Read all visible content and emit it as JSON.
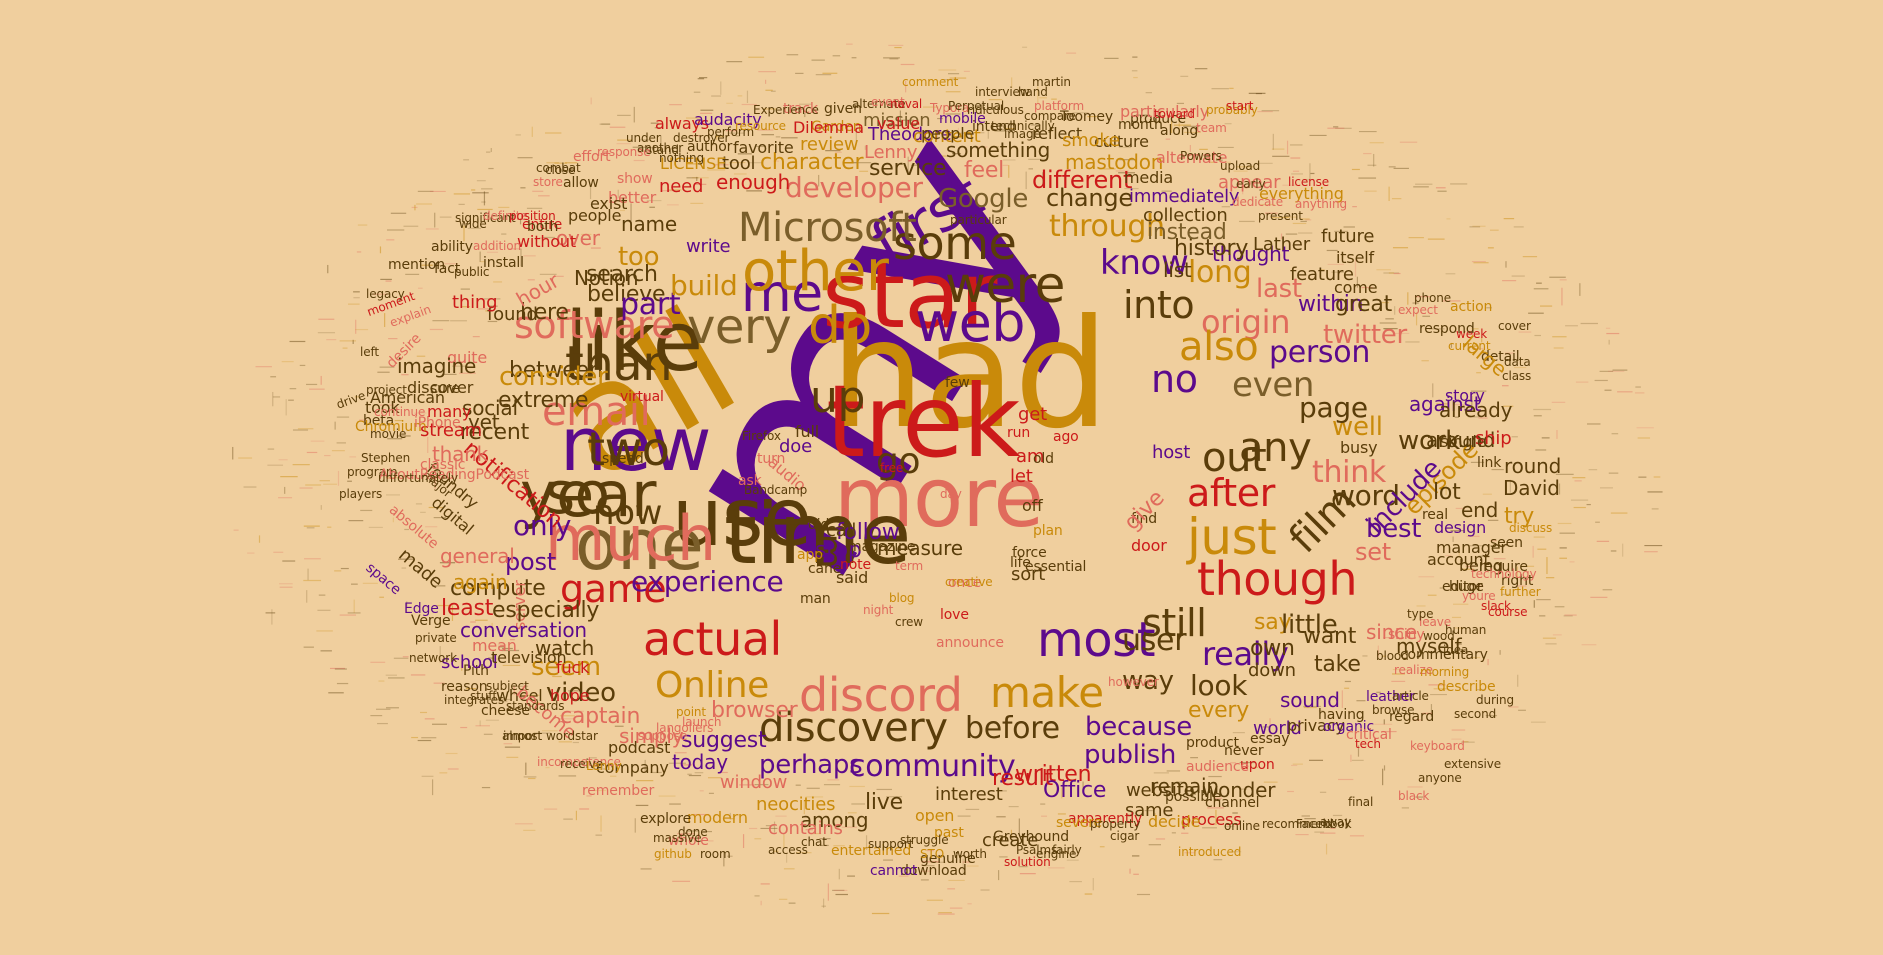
{
  "palette": {
    "background": "#f0cf9e",
    "purple": "#5c0a8c",
    "gold": "#c98a0a",
    "red": "#cc1a1a",
    "salmon": "#e06b5c",
    "brown": "#5a3d0a",
    "olive": "#7a5e2a"
  },
  "words": [
    "my",
    "had",
    "star",
    "trek",
    "all",
    "more",
    "time",
    "use",
    "one",
    "like",
    "new",
    "much",
    "so",
    "year",
    "first",
    "web",
    "were",
    "some",
    "me",
    "do",
    "very",
    "other",
    "Microsoft",
    "software",
    "email",
    "than",
    "two",
    "up",
    "lm",
    "go",
    "now",
    "game",
    "actual",
    "discord",
    "Online",
    "most",
    "discovery",
    "make",
    "still",
    "really",
    "just",
    "out",
    "after",
    "though",
    "film",
    "any",
    "even",
    "person",
    "origin",
    "also",
    "into",
    "no",
    "know",
    "through",
    "Google",
    "change",
    "developer",
    "only",
    "post",
    "compute",
    "community",
    "perhaps",
    "publish",
    "because",
    "before",
    "user",
    "way",
    "look",
    "every",
    "say",
    "little",
    "set",
    "best",
    "word",
    "think",
    "well",
    "page",
    "episode",
    "twitter",
    "last",
    "long",
    "different",
    "feel",
    "service",
    "something",
    "character",
    "review",
    "mission",
    "Theodore",
    "Lenny",
    "content",
    "author",
    "favorite",
    "tool",
    "enough",
    "need",
    "LICENSE",
    "better",
    "show",
    "mastodon",
    "alternate",
    "culture",
    "media",
    "immediately",
    "collection",
    "thought",
    "list",
    "history",
    "instead",
    "feature",
    "Lather",
    "future",
    "appear",
    "everything",
    "itself",
    "within",
    "great",
    "come",
    "against",
    "work",
    "busy",
    "include",
    "myself",
    "since",
    "want",
    "take",
    "down",
    "sound",
    "world",
    "privacy",
    "having",
    "organic",
    "essay",
    "product",
    "never",
    "upon",
    "audience",
    "remain",
    "wonder",
    "possible",
    "website",
    "same",
    "process",
    "channel",
    "decide",
    "apparently",
    "severe",
    "written",
    "Office",
    "result",
    "interest",
    "live",
    "open",
    "past",
    "Greyhound",
    "Psalms",
    "create",
    "genuine",
    "download",
    "cannot",
    "entertained",
    "among",
    "contains",
    "modern",
    "neocities",
    "window",
    "whole",
    "github",
    "explore",
    "remember",
    "company",
    "podcast",
    "today",
    "simply",
    "suggest",
    "captain",
    "browser",
    "video",
    "seem",
    "experience",
    "own",
    "fuck",
    "reason",
    "Pith",
    "school",
    "mean",
    "private",
    "Verge",
    "network",
    "hope",
    "wheel",
    "cheese",
    "import",
    "become",
    "watch",
    "server",
    "conversation",
    "especially",
    "least",
    "again",
    "general",
    "made",
    "space",
    "Edge",
    "digital",
    "absolute",
    "notification",
    "foundry",
    "thank",
    "recent",
    "social",
    "yet",
    "stream",
    "many",
    "discover",
    "between",
    "consider",
    "extreme",
    "here",
    "found",
    "sure",
    "quite",
    "thing",
    "hour",
    "Notion",
    "believe",
    "search",
    "part",
    "build",
    "too",
    "name",
    "write",
    "over",
    "without",
    "entire",
    "both",
    "people",
    "exist",
    "allow",
    "store",
    "close",
    "effort",
    "combat",
    "stop",
    "follow",
    "measure",
    "magazine",
    "did",
    "call",
    "doe",
    "audio",
    "turn",
    "ask",
    "full",
    "said",
    "note",
    "app",
    "free",
    "cane",
    "man",
    "night",
    "day",
    "blog",
    "term",
    "once",
    "sort",
    "life",
    "door",
    "find",
    "give",
    "host",
    "run",
    "ago",
    "am",
    "get",
    "let",
    "off",
    "plan",
    "force",
    "essential",
    "love",
    "announce",
    "creative",
    "crew",
    "few",
    "old",
    "lot",
    "David",
    "try",
    "end",
    "round",
    "around",
    "already",
    "ship",
    "story",
    "single",
    "real",
    "link",
    "design",
    "manager",
    "account",
    "being",
    "seen",
    "editor",
    "require",
    "huge",
    "right",
    "slack",
    "youre",
    "course",
    "discuss",
    "further",
    "technology",
    "shiny",
    "realize",
    "commentary",
    "blood",
    "leather",
    "critical",
    "regard",
    "tech",
    "browse",
    "describe",
    "article",
    "morning",
    "wood",
    "leave",
    "type",
    "idea",
    "human",
    "phone",
    "expect",
    "current",
    "week",
    "cover",
    "data",
    "class",
    "detail",
    "action",
    "respond",
    "large",
    "imagine",
    "American",
    "took",
    "beta",
    "Chromium",
    "iPhone",
    "classic",
    "major",
    "players",
    "program",
    "AboutReadingPodcast",
    "Stephen",
    "movie",
    "continue",
    "project",
    "left",
    "desire",
    "drive",
    "moment",
    "explain",
    "legacy",
    "mention",
    "fact",
    "ability",
    "install",
    "public",
    "addition",
    "significant",
    "wide",
    "definite",
    "position",
    "unfortunately",
    "Bandcamp",
    "Firefox",
    "speed",
    "virtual",
    "Garden",
    "always",
    "audacity",
    "Dilemma",
    "track",
    "given",
    "value",
    "people",
    "mobile",
    "Typora",
    "Perpetual",
    "intend",
    "reflect",
    "platform",
    "smoke",
    "Toomey",
    "produce",
    "particularly",
    "month",
    "along",
    "toward",
    "probably",
    "start",
    "team",
    "Powers",
    "upload",
    "early",
    "dedicate",
    "license",
    "anything",
    "present",
    "particular",
    "image",
    "compare",
    "technically",
    "ridiculous",
    "alternate",
    "event",
    "naval",
    "Experience",
    "perform",
    "destroyer",
    "stand",
    "nothing",
    "under",
    "response",
    "another",
    "resource",
    "comment",
    "interview",
    "hand",
    "martin",
    "however",
    "television",
    "subject",
    "standards",
    "stuff",
    "integrates",
    "almost",
    "wordstar",
    "incompetence",
    "receive",
    "Lenny",
    "suppose",
    "langoliers",
    "launch",
    "point",
    "massive",
    "done",
    "room",
    "access",
    "chat",
    "support",
    "struggle",
    "STO",
    "worth",
    "solution",
    "engine",
    "cigar",
    "property",
    "fairly",
    "introduced",
    "online",
    "recommend",
    "Facebook",
    "away",
    "final",
    "black",
    "anyone",
    "extensive",
    "keyboard",
    "second",
    "during",
    "light",
    "shit",
    "true",
    "USS",
    "desktop",
    "Cryptic",
    "himself",
    "deep",
    "HEY",
    "King",
    "less",
    "date",
    "bit",
    "doe",
    "text",
    "air",
    "big",
    "brief",
    "Suck",
    "three",
    "create",
    "received",
    "handled",
    "shortcuts",
    "season",
    "specific",
    "scattered",
    "speaking",
    "platform",
    "smoke",
    "sign",
    "note",
    "cult",
    "matter",
    "whether",
    "longer",
    "flight",
    "information",
    "board",
    "scope",
    "plenty",
    "summary",
    "spoiler",
    "teleport",
    "dreamy",
    "cover",
    "sorry",
    "enterprise",
    "boundary"
  ]
}
